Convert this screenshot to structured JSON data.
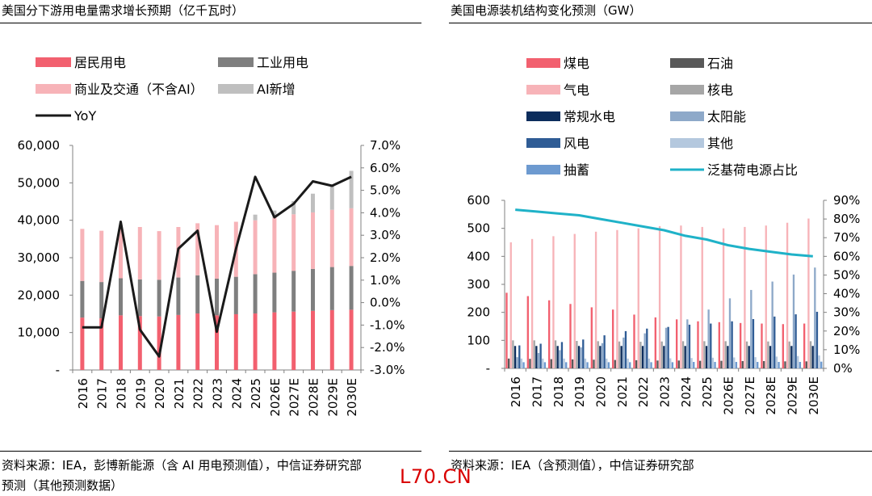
{
  "left_panel": {
    "title": "美国分下游用电量需求增长预期（亿千瓦时）",
    "source_line1": "资料来源：IEA，彭博新能源（含 AI 用电预测值），中信证券研究部",
    "source_line2": "预测（其他预测数据）"
  },
  "right_panel": {
    "title": "美国电源装机结构变化预测（GW）",
    "source_line1": "资料来源：IEA（含预测值），中信证券研究部"
  },
  "watermark": "L70.CN",
  "chart_data": [
    {
      "type": "bar",
      "stacking": "stacked",
      "categories": [
        "2016",
        "2017",
        "2018",
        "2019",
        "2020",
        "2021",
        "2022",
        "2023",
        "2024",
        "2025",
        "2026E",
        "2027E",
        "2028E",
        "2029E",
        "2030E"
      ],
      "y_left": {
        "min": 0,
        "max": 60000,
        "ticks": [
          "-",
          "10,000",
          "20,000",
          "30,000",
          "40,000",
          "50,000",
          "60,000"
        ]
      },
      "y_right": {
        "min": -3.0,
        "max": 7.0,
        "ticks": [
          "-3.0%",
          "-2.0%",
          "-1.0%",
          "0.0%",
          "1.0%",
          "2.0%",
          "3.0%",
          "4.0%",
          "5.0%",
          "6.0%",
          "7.0%"
        ]
      },
      "legend_position": "top",
      "series": [
        {
          "name": "居民用电",
          "color": "#f2606f",
          "kind": "bar",
          "values": [
            14000,
            13800,
            14600,
            14400,
            14300,
            14700,
            15100,
            14600,
            14900,
            15100,
            15400,
            15600,
            15800,
            16000,
            16100
          ]
        },
        {
          "name": "工业用电",
          "color": "#7f7f7f",
          "kind": "bar",
          "values": [
            9800,
            9700,
            9900,
            9800,
            9800,
            10000,
            10200,
            9800,
            10000,
            10500,
            10600,
            10900,
            11200,
            11500,
            11700
          ]
        },
        {
          "name": "商业及交通（不含AI）",
          "color": "#f7b3b8",
          "kind": "bar",
          "values": [
            13900,
            13700,
            13800,
            14000,
            13000,
            13500,
            13900,
            14300,
            14700,
            14400,
            14700,
            15100,
            15100,
            15300,
            15400
          ]
        },
        {
          "name": "AI新增",
          "color": "#bfbfbf",
          "kind": "bar",
          "values": [
            0,
            0,
            0,
            0,
            0,
            0,
            0,
            0,
            0,
            1500,
            1900,
            3500,
            5000,
            6500,
            10000
          ]
        },
        {
          "name": "YoY",
          "color": "#1a1a1a",
          "kind": "line",
          "axis": "right",
          "values": [
            -1.1,
            -1.1,
            3.6,
            -1.2,
            -2.4,
            2.4,
            3.2,
            -1.3,
            2.4,
            5.6,
            3.8,
            4.4,
            5.4,
            5.2,
            5.6
          ]
        }
      ]
    },
    {
      "type": "bar",
      "categories": [
        "2016",
        "2017",
        "2018",
        "2019",
        "2020",
        "2021",
        "2022",
        "2023",
        "2024",
        "2025",
        "2026E",
        "2027E",
        "2028E",
        "2029E",
        "2030E"
      ],
      "y_left": {
        "min": 0,
        "max": 600,
        "ticks": [
          "-",
          "100",
          "200",
          "300",
          "400",
          "500",
          "600"
        ]
      },
      "y_right": {
        "min": 0,
        "max": 90,
        "ticks": [
          "0%",
          "10%",
          "20%",
          "30%",
          "40%",
          "50%",
          "60%",
          "70%",
          "80%",
          "90%"
        ]
      },
      "legend_position": "top",
      "series": [
        {
          "name": "煤电",
          "color": "#f2606f",
          "kind": "bar",
          "values": [
            270,
            258,
            243,
            230,
            218,
            210,
            192,
            182,
            175,
            168,
            165,
            162,
            160,
            158,
            160
          ]
        },
        {
          "name": "石油",
          "color": "#595959",
          "kind": "bar",
          "values": [
            35,
            34,
            33,
            32,
            31,
            30,
            29,
            28,
            28,
            27,
            27,
            26,
            26,
            25,
            25
          ]
        },
        {
          "name": "气电",
          "color": "#f7b3b8",
          "kind": "bar",
          "values": [
            450,
            462,
            472,
            480,
            488,
            494,
            500,
            508,
            510,
            505,
            500,
            505,
            510,
            520,
            535
          ]
        },
        {
          "name": "核电",
          "color": "#a6a6a6",
          "kind": "bar",
          "values": [
            100,
            100,
            100,
            98,
            97,
            96,
            95,
            96,
            97,
            97,
            97,
            96,
            96,
            96,
            97
          ]
        },
        {
          "name": "常规水电",
          "color": "#0c2d5c",
          "kind": "bar",
          "values": [
            80,
            80,
            80,
            80,
            80,
            80,
            80,
            80,
            80,
            80,
            80,
            80,
            80,
            80,
            80
          ]
        },
        {
          "name": "太阳能",
          "color": "#8ea9c9",
          "kind": "bar",
          "values": [
            40,
            55,
            65,
            75,
            90,
            110,
            125,
            145,
            175,
            210,
            250,
            280,
            310,
            335,
            360
          ]
        },
        {
          "name": "风电",
          "color": "#2f5c95",
          "kind": "bar",
          "values": [
            82,
            88,
            94,
            103,
            118,
            133,
            142,
            148,
            156,
            160,
            168,
            176,
            185,
            193,
            202
          ]
        },
        {
          "name": "其他",
          "color": "#b4c8de",
          "kind": "bar",
          "values": [
            35,
            35,
            35,
            35,
            35,
            35,
            35,
            36,
            37,
            38,
            39,
            40,
            42,
            44,
            46
          ]
        },
        {
          "name": "抽蓄",
          "color": "#6d9ad0",
          "kind": "bar",
          "values": [
            22,
            22,
            22,
            22,
            22,
            22,
            22,
            22,
            23,
            23,
            23,
            23,
            23,
            23,
            24
          ]
        },
        {
          "name": "泛基荷电源占比",
          "color": "#1fb2c8",
          "kind": "line",
          "axis": "right",
          "values": [
            85,
            84,
            83,
            82,
            80,
            78,
            76,
            74,
            71,
            69,
            66,
            64,
            62.5,
            61,
            60
          ]
        }
      ]
    }
  ]
}
